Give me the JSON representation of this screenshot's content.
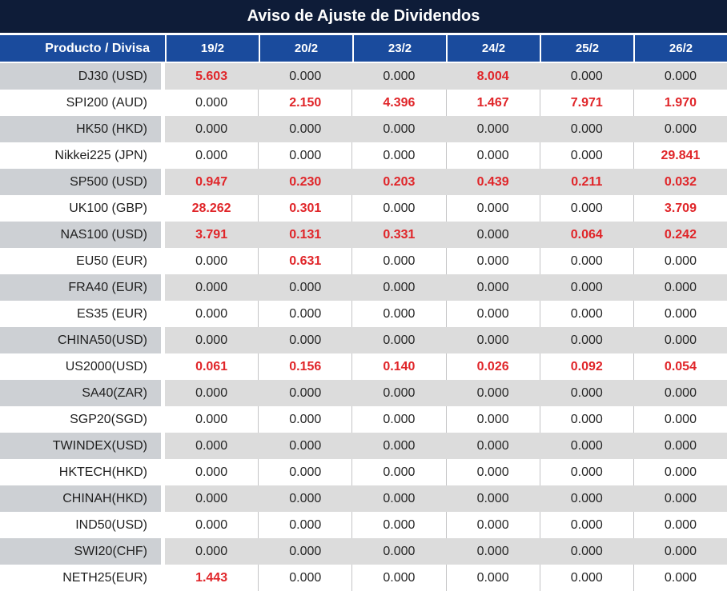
{
  "title": "Aviso de Ajuste de Dividendos",
  "colors": {
    "title_bg": "#0e1c38",
    "header_bg": "#1a4b9d",
    "alt_row_label_bg": "#cdd0d4",
    "alt_row_value_bg": "#dcdcdc",
    "negative_value_red": "#e02529",
    "text_dark": "#262626"
  },
  "table": {
    "product_header": "Producto / Divisa",
    "date_headers": [
      "19/2",
      "20/2",
      "23/2",
      "24/2",
      "25/2",
      "26/2"
    ],
    "rows": [
      {
        "product": "DJ30 (USD)",
        "values": [
          "5.603",
          "0.000",
          "0.000",
          "8.004",
          "0.000",
          "0.000"
        ],
        "red": [
          true,
          false,
          false,
          true,
          false,
          false
        ]
      },
      {
        "product": "SPI200 (AUD)",
        "values": [
          "0.000",
          "2.150",
          "4.396",
          "1.467",
          "7.971",
          "1.970"
        ],
        "red": [
          false,
          true,
          true,
          true,
          true,
          true
        ]
      },
      {
        "product": "HK50 (HKD)",
        "values": [
          "0.000",
          "0.000",
          "0.000",
          "0.000",
          "0.000",
          "0.000"
        ],
        "red": [
          false,
          false,
          false,
          false,
          false,
          false
        ]
      },
      {
        "product": "Nikkei225 (JPN)",
        "values": [
          "0.000",
          "0.000",
          "0.000",
          "0.000",
          "0.000",
          "29.841"
        ],
        "red": [
          false,
          false,
          false,
          false,
          false,
          true
        ]
      },
      {
        "product": "SP500 (USD)",
        "values": [
          "0.947",
          "0.230",
          "0.203",
          "0.439",
          "0.211",
          "0.032"
        ],
        "red": [
          true,
          true,
          true,
          true,
          true,
          true
        ]
      },
      {
        "product": "UK100 (GBP)",
        "values": [
          "28.262",
          "0.301",
          "0.000",
          "0.000",
          "0.000",
          "3.709"
        ],
        "red": [
          true,
          true,
          false,
          false,
          false,
          true
        ]
      },
      {
        "product": "NAS100 (USD)",
        "values": [
          "3.791",
          "0.131",
          "0.331",
          "0.000",
          "0.064",
          "0.242"
        ],
        "red": [
          true,
          true,
          true,
          false,
          true,
          true
        ]
      },
      {
        "product": "EU50 (EUR)",
        "values": [
          "0.000",
          "0.631",
          "0.000",
          "0.000",
          "0.000",
          "0.000"
        ],
        "red": [
          false,
          true,
          false,
          false,
          false,
          false
        ]
      },
      {
        "product": "FRA40 (EUR)",
        "values": [
          "0.000",
          "0.000",
          "0.000",
          "0.000",
          "0.000",
          "0.000"
        ],
        "red": [
          false,
          false,
          false,
          false,
          false,
          false
        ]
      },
      {
        "product": "ES35 (EUR)",
        "values": [
          "0.000",
          "0.000",
          "0.000",
          "0.000",
          "0.000",
          "0.000"
        ],
        "red": [
          false,
          false,
          false,
          false,
          false,
          false
        ]
      },
      {
        "product": "CHINA50(USD)",
        "values": [
          "0.000",
          "0.000",
          "0.000",
          "0.000",
          "0.000",
          "0.000"
        ],
        "red": [
          false,
          false,
          false,
          false,
          false,
          false
        ]
      },
      {
        "product": "US2000(USD)",
        "values": [
          "0.061",
          "0.156",
          "0.140",
          "0.026",
          "0.092",
          "0.054"
        ],
        "red": [
          true,
          true,
          true,
          true,
          true,
          true
        ]
      },
      {
        "product": "SA40(ZAR)",
        "values": [
          "0.000",
          "0.000",
          "0.000",
          "0.000",
          "0.000",
          "0.000"
        ],
        "red": [
          false,
          false,
          false,
          false,
          false,
          false
        ]
      },
      {
        "product": "SGP20(SGD)",
        "values": [
          "0.000",
          "0.000",
          "0.000",
          "0.000",
          "0.000",
          "0.000"
        ],
        "red": [
          false,
          false,
          false,
          false,
          false,
          false
        ]
      },
      {
        "product": "TWINDEX(USD)",
        "values": [
          "0.000",
          "0.000",
          "0.000",
          "0.000",
          "0.000",
          "0.000"
        ],
        "red": [
          false,
          false,
          false,
          false,
          false,
          false
        ]
      },
      {
        "product": "HKTECH(HKD)",
        "values": [
          "0.000",
          "0.000",
          "0.000",
          "0.000",
          "0.000",
          "0.000"
        ],
        "red": [
          false,
          false,
          false,
          false,
          false,
          false
        ]
      },
      {
        "product": "CHINAH(HKD)",
        "values": [
          "0.000",
          "0.000",
          "0.000",
          "0.000",
          "0.000",
          "0.000"
        ],
        "red": [
          false,
          false,
          false,
          false,
          false,
          false
        ]
      },
      {
        "product": "IND50(USD)",
        "values": [
          "0.000",
          "0.000",
          "0.000",
          "0.000",
          "0.000",
          "0.000"
        ],
        "red": [
          false,
          false,
          false,
          false,
          false,
          false
        ]
      },
      {
        "product": "SWI20(CHF)",
        "values": [
          "0.000",
          "0.000",
          "0.000",
          "0.000",
          "0.000",
          "0.000"
        ],
        "red": [
          false,
          false,
          false,
          false,
          false,
          false
        ]
      },
      {
        "product": "NETH25(EUR)",
        "values": [
          "1.443",
          "0.000",
          "0.000",
          "0.000",
          "0.000",
          "0.000"
        ],
        "red": [
          true,
          false,
          false,
          false,
          false,
          false
        ]
      }
    ]
  }
}
